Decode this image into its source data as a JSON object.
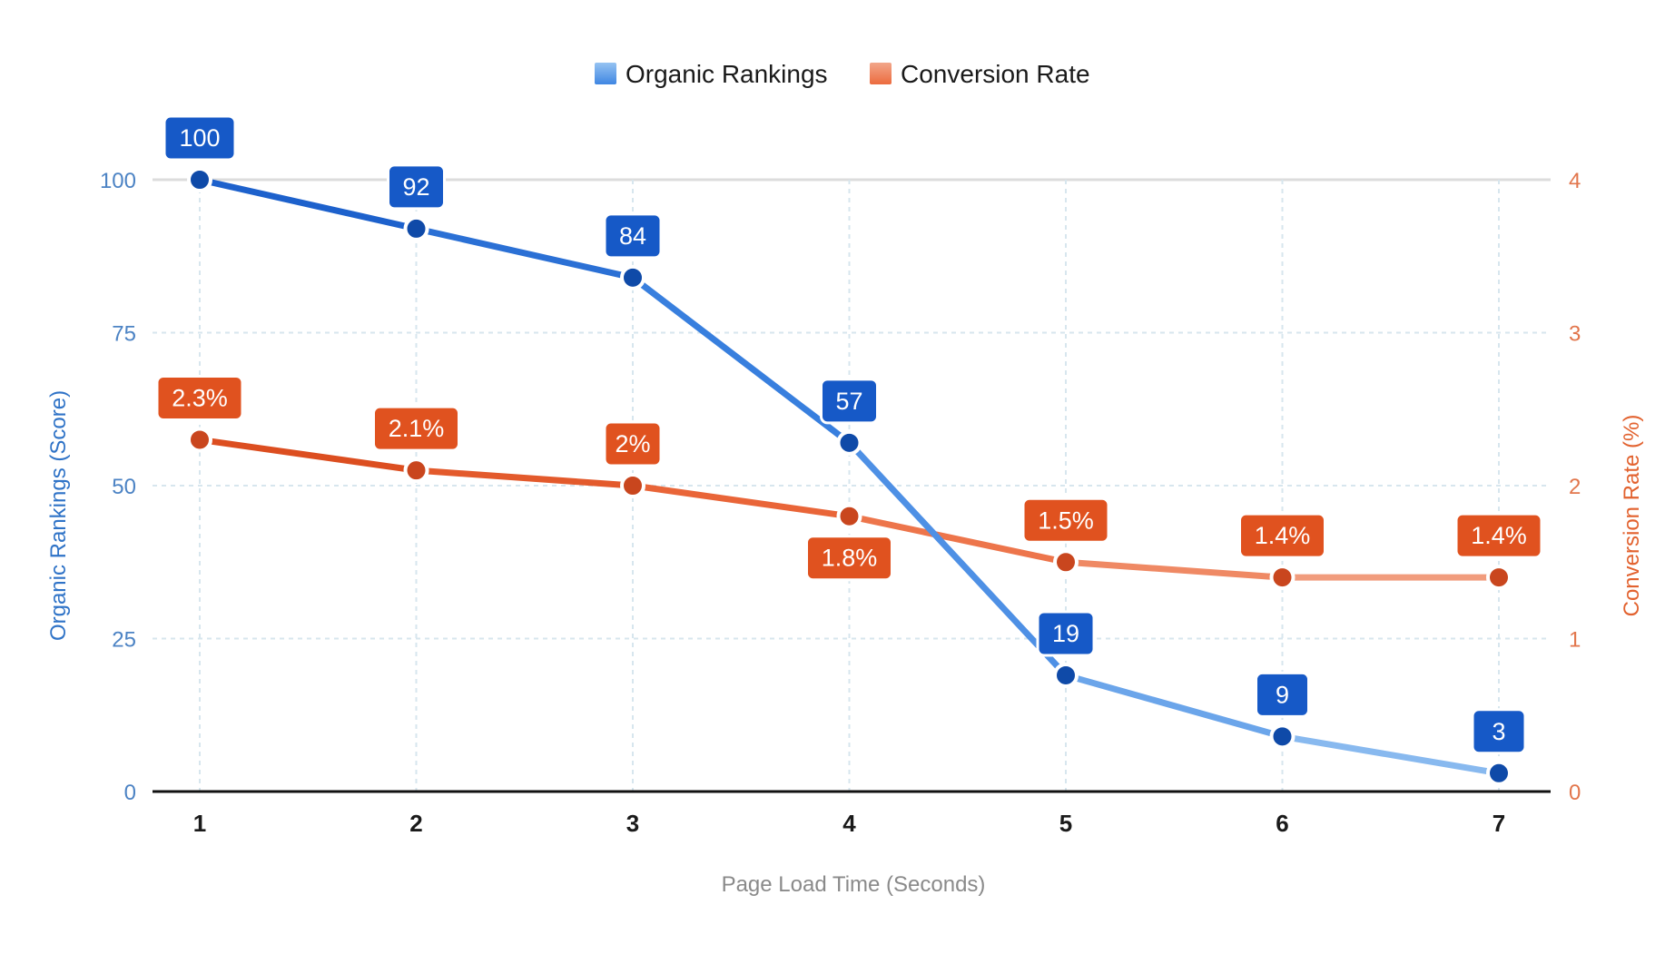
{
  "chart_data": {
    "type": "line",
    "x": [
      1,
      2,
      3,
      4,
      5,
      6,
      7
    ],
    "xlabel": "Page Load Time (Seconds)",
    "legend_position": "top-center",
    "grid": true,
    "series": [
      {
        "name": "Organic Rankings",
        "axis": "left",
        "values": [
          100,
          92,
          84,
          57,
          19,
          9,
          3
        ],
        "labels": [
          "100",
          "92",
          "84",
          "57",
          "19",
          "9",
          "3"
        ],
        "label_position": [
          "above",
          "above",
          "above",
          "above",
          "above",
          "above",
          "above"
        ]
      },
      {
        "name": "Conversion Rate",
        "axis": "right",
        "values": [
          2.3,
          2.1,
          2,
          1.8,
          1.5,
          1.4,
          1.4
        ],
        "labels": [
          "2.3%",
          "2.1%",
          "2%",
          "1.8%",
          "1.5%",
          "1.4%",
          "1.4%"
        ],
        "label_position": [
          "above",
          "above",
          "above",
          "below",
          "above",
          "above",
          "above"
        ]
      }
    ],
    "y_left": {
      "label": "Organic Rankings (Score)",
      "ylim": [
        0,
        100
      ],
      "ticks": [
        0,
        25,
        50,
        75,
        100
      ]
    },
    "y_right": {
      "label": "Conversion Rate (%)",
      "ylim": [
        0,
        4
      ],
      "ticks": [
        0,
        1,
        2,
        3,
        4
      ]
    }
  },
  "colors": {
    "blue_dark": "#1659c7",
    "blue_mid": "#3f86e2",
    "blue_light": "#96c3f2",
    "blue_marker": "#0f4aa8",
    "blue_axis_text": "#4c83c4",
    "orange_dark": "#d9481a",
    "orange_mid": "#ec6b3e",
    "orange_light": "#f2a68a",
    "orange_marker": "#c9461e",
    "orange_axis_text": "#e2764c",
    "grid": "#d7e6ee",
    "axis": "#111111",
    "xlabel_text": "#8a8a8a"
  }
}
